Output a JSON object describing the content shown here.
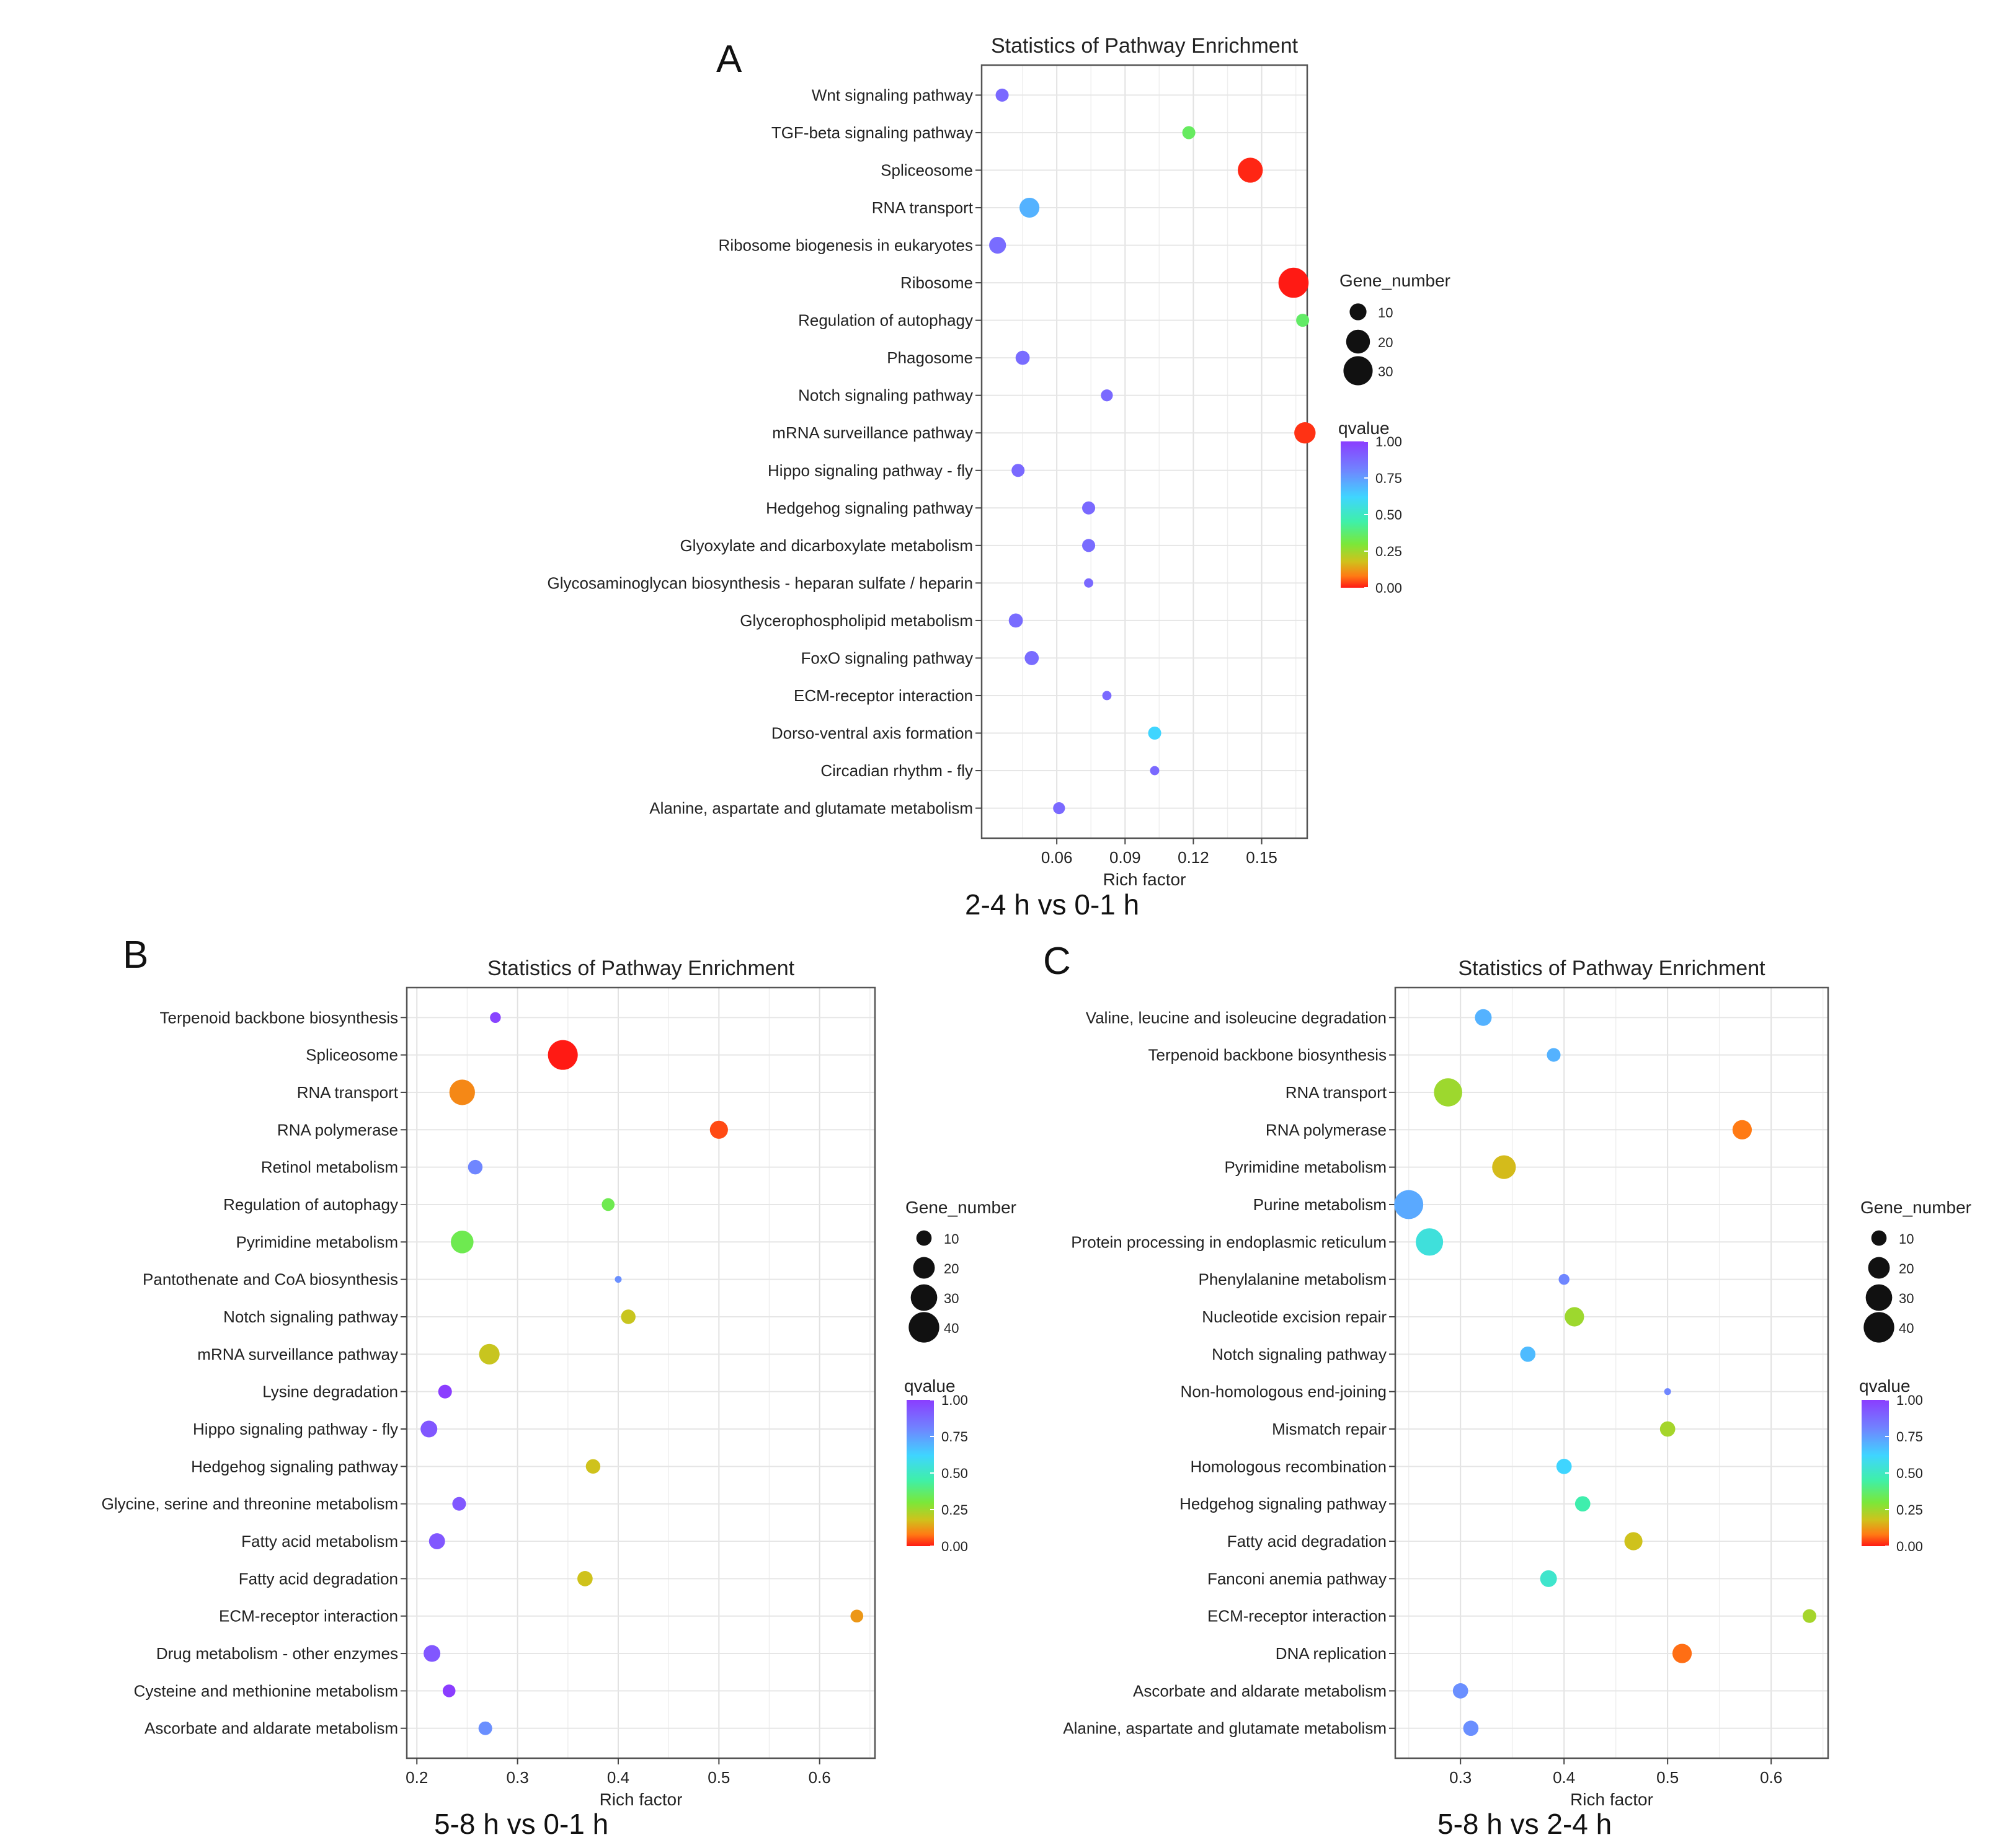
{
  "panels": [
    {
      "letter": "A",
      "subtitle": "2-4 h vs 0-1 h"
    },
    {
      "letter": "B",
      "subtitle": "5-8 h vs 0-1 h"
    },
    {
      "letter": "C",
      "subtitle": "5-8 h vs 2-4 h"
    }
  ],
  "chart_data": [
    {
      "type": "scatter",
      "id": "A",
      "title": "Statistics of Pathway Enrichment",
      "xlabel": "Rich factor",
      "xlim": [
        0.027,
        0.17
      ],
      "xticks": [
        0.06,
        0.09,
        0.12,
        0.15
      ],
      "xtick_labels": [
        "0.06",
        "0.09",
        "0.12",
        "0.15"
      ],
      "size_legend": {
        "title": "Gene_number",
        "values": [
          10,
          20,
          30
        ]
      },
      "color_legend": {
        "title": "qvalue",
        "ticks": [
          "1.00",
          "0.75",
          "0.50",
          "0.25",
          "0.00"
        ]
      },
      "points": [
        {
          "pathway": "Wnt signaling pathway",
          "rich_factor": 0.036,
          "gene_number": 6,
          "qvalue": 0.88
        },
        {
          "pathway": "TGF-beta signaling pathway",
          "rich_factor": 0.118,
          "gene_number": 6,
          "qvalue": 0.35
        },
        {
          "pathway": "Spliceosome",
          "rich_factor": 0.145,
          "gene_number": 22,
          "qvalue": 0.01
        },
        {
          "pathway": "RNA transport",
          "rich_factor": 0.048,
          "gene_number": 14,
          "qvalue": 0.7
        },
        {
          "pathway": "Ribosome biogenesis in eukaryotes",
          "rich_factor": 0.034,
          "gene_number": 10,
          "qvalue": 0.87
        },
        {
          "pathway": "Ribosome",
          "rich_factor": 0.164,
          "gene_number": 32,
          "qvalue": 0.0
        },
        {
          "pathway": "Regulation of autophagy",
          "rich_factor": 0.168,
          "gene_number": 6,
          "qvalue": 0.36
        },
        {
          "pathway": "Phagosome",
          "rich_factor": 0.045,
          "gene_number": 7,
          "qvalue": 0.87
        },
        {
          "pathway": "Notch signaling pathway",
          "rich_factor": 0.082,
          "gene_number": 5,
          "qvalue": 0.88
        },
        {
          "pathway": "mRNA surveillance pathway",
          "rich_factor": 0.169,
          "gene_number": 16,
          "qvalue": 0.02
        },
        {
          "pathway": "Hippo signaling pathway - fly",
          "rich_factor": 0.043,
          "gene_number": 6,
          "qvalue": 0.88
        },
        {
          "pathway": "Hedgehog signaling pathway",
          "rich_factor": 0.074,
          "gene_number": 6,
          "qvalue": 0.88
        },
        {
          "pathway": "Glyoxylate and dicarboxylate metabolism",
          "rich_factor": 0.074,
          "gene_number": 6,
          "qvalue": 0.87
        },
        {
          "pathway": "Glycosaminoglycan biosynthesis - heparan sulfate / heparin",
          "rich_factor": 0.074,
          "gene_number": 3,
          "qvalue": 0.88
        },
        {
          "pathway": "Glycerophospholipid metabolism",
          "rich_factor": 0.042,
          "gene_number": 7,
          "qvalue": 0.87
        },
        {
          "pathway": "FoxO signaling pathway",
          "rich_factor": 0.049,
          "gene_number": 7,
          "qvalue": 0.87
        },
        {
          "pathway": "ECM-receptor interaction",
          "rich_factor": 0.082,
          "gene_number": 3,
          "qvalue": 0.88
        },
        {
          "pathway": "Dorso-ventral axis formation",
          "rich_factor": 0.103,
          "gene_number": 6,
          "qvalue": 0.62
        },
        {
          "pathway": "Circadian rhythm - fly",
          "rich_factor": 0.103,
          "gene_number": 3,
          "qvalue": 0.88
        },
        {
          "pathway": "Alanine, aspartate and glutamate metabolism",
          "rich_factor": 0.061,
          "gene_number": 5,
          "qvalue": 0.88
        }
      ]
    },
    {
      "type": "scatter",
      "id": "B",
      "title": "Statistics of Pathway Enrichment",
      "xlabel": "Rich factor",
      "xlim": [
        0.19,
        0.655
      ],
      "xticks": [
        0.2,
        0.3,
        0.4,
        0.5,
        0.6
      ],
      "xtick_labels": [
        "0.2",
        "0.3",
        "0.4",
        "0.5",
        "0.6"
      ],
      "size_legend": {
        "title": "Gene_number",
        "values": [
          10,
          20,
          30,
          40
        ]
      },
      "color_legend": {
        "title": "qvalue",
        "ticks": [
          "1.00",
          "0.75",
          "0.50",
          "0.25",
          "0.00"
        ]
      },
      "points": [
        {
          "pathway": "Terpenoid backbone biosynthesis",
          "rich_factor": 0.278,
          "gene_number": 5,
          "qvalue": 0.98
        },
        {
          "pathway": "Spliceosome",
          "rich_factor": 0.345,
          "gene_number": 38,
          "qvalue": 0.0
        },
        {
          "pathway": "RNA transport",
          "rich_factor": 0.245,
          "gene_number": 28,
          "qvalue": 0.1
        },
        {
          "pathway": "RNA polymerase",
          "rich_factor": 0.5,
          "gene_number": 14,
          "qvalue": 0.04
        },
        {
          "pathway": "Retinol metabolism",
          "rich_factor": 0.258,
          "gene_number": 9,
          "qvalue": 0.8
        },
        {
          "pathway": "Regulation of autophagy",
          "rich_factor": 0.39,
          "gene_number": 7,
          "qvalue": 0.33
        },
        {
          "pathway": "Pyrimidine metabolism",
          "rich_factor": 0.245,
          "gene_number": 22,
          "qvalue": 0.33
        },
        {
          "pathway": "Pantothenate and CoA biosynthesis",
          "rich_factor": 0.4,
          "gene_number": 2,
          "qvalue": 0.78
        },
        {
          "pathway": "Notch signaling pathway",
          "rich_factor": 0.41,
          "gene_number": 9,
          "qvalue": 0.19
        },
        {
          "pathway": "mRNA surveillance pathway",
          "rich_factor": 0.272,
          "gene_number": 18,
          "qvalue": 0.19
        },
        {
          "pathway": "Lysine degradation",
          "rich_factor": 0.228,
          "gene_number": 8,
          "qvalue": 1.0
        },
        {
          "pathway": "Hippo signaling pathway - fly",
          "rich_factor": 0.212,
          "gene_number": 12,
          "qvalue": 0.93
        },
        {
          "pathway": "Hedgehog signaling pathway",
          "rich_factor": 0.375,
          "gene_number": 9,
          "qvalue": 0.18
        },
        {
          "pathway": "Glycine, serine and threonine metabolism",
          "rich_factor": 0.242,
          "gene_number": 8,
          "qvalue": 0.93
        },
        {
          "pathway": "Fatty acid metabolism",
          "rich_factor": 0.22,
          "gene_number": 11,
          "qvalue": 0.93
        },
        {
          "pathway": "Fatty acid degradation",
          "rich_factor": 0.367,
          "gene_number": 10,
          "qvalue": 0.18
        },
        {
          "pathway": "ECM-receptor interaction",
          "rich_factor": 0.637,
          "gene_number": 7,
          "qvalue": 0.12
        },
        {
          "pathway": "Drug metabolism - other enzymes",
          "rich_factor": 0.215,
          "gene_number": 12,
          "qvalue": 0.93
        },
        {
          "pathway": "Cysteine and methionine metabolism",
          "rich_factor": 0.232,
          "gene_number": 7,
          "qvalue": 1.0
        },
        {
          "pathway": "Ascorbate and aldarate metabolism",
          "rich_factor": 0.268,
          "gene_number": 8,
          "qvalue": 0.78
        }
      ]
    },
    {
      "type": "scatter",
      "id": "C",
      "title": "Statistics of Pathway Enrichment",
      "xlabel": "Rich factor",
      "xlim": [
        0.237,
        0.655
      ],
      "xticks": [
        0.3,
        0.4,
        0.5,
        0.6
      ],
      "xtick_labels": [
        "0.3",
        "0.4",
        "0.5",
        "0.6"
      ],
      "size_legend": {
        "title": "Gene_number",
        "values": [
          10,
          20,
          30,
          40
        ]
      },
      "color_legend": {
        "title": "qvalue",
        "ticks": [
          "1.00",
          "0.75",
          "0.50",
          "0.25",
          "0.00"
        ]
      },
      "points": [
        {
          "pathway": "Valine, leucine and isoleucine degradation",
          "rich_factor": 0.322,
          "gene_number": 12,
          "qvalue": 0.7
        },
        {
          "pathway": "Terpenoid backbone biosynthesis",
          "rich_factor": 0.39,
          "gene_number": 8,
          "qvalue": 0.7
        },
        {
          "pathway": "RNA transport",
          "rich_factor": 0.288,
          "gene_number": 34,
          "qvalue": 0.25
        },
        {
          "pathway": "RNA polymerase",
          "rich_factor": 0.572,
          "gene_number": 16,
          "qvalue": 0.08
        },
        {
          "pathway": "Pyrimidine metabolism",
          "rich_factor": 0.342,
          "gene_number": 24,
          "qvalue": 0.17
        },
        {
          "pathway": "Purine metabolism",
          "rich_factor": 0.25,
          "gene_number": 36,
          "qvalue": 0.72
        },
        {
          "pathway": "Protein processing in endoplasmic reticulum",
          "rich_factor": 0.27,
          "gene_number": 32,
          "qvalue": 0.55
        },
        {
          "pathway": "Phenylalanine metabolism",
          "rich_factor": 0.4,
          "gene_number": 5,
          "qvalue": 0.8
        },
        {
          "pathway": "Nucleotide excision repair",
          "rich_factor": 0.41,
          "gene_number": 16,
          "qvalue": 0.25
        },
        {
          "pathway": "Notch signaling pathway",
          "rich_factor": 0.365,
          "gene_number": 10,
          "qvalue": 0.68
        },
        {
          "pathway": "Non-homologous end-joining",
          "rich_factor": 0.5,
          "gene_number": 2,
          "qvalue": 0.8
        },
        {
          "pathway": "Mismatch repair",
          "rich_factor": 0.5,
          "gene_number": 10,
          "qvalue": 0.24
        },
        {
          "pathway": "Homologous recombination",
          "rich_factor": 0.4,
          "gene_number": 10,
          "qvalue": 0.62
        },
        {
          "pathway": "Hedgehog signaling pathway",
          "rich_factor": 0.418,
          "gene_number": 10,
          "qvalue": 0.46
        },
        {
          "pathway": "Fatty acid degradation",
          "rich_factor": 0.467,
          "gene_number": 14,
          "qvalue": 0.18
        },
        {
          "pathway": "Fanconi anemia pathway",
          "rich_factor": 0.385,
          "gene_number": 12,
          "qvalue": 0.52
        },
        {
          "pathway": "ECM-receptor interaction",
          "rich_factor": 0.637,
          "gene_number": 8,
          "qvalue": 0.24
        },
        {
          "pathway": "DNA replication",
          "rich_factor": 0.514,
          "gene_number": 16,
          "qvalue": 0.07
        },
        {
          "pathway": "Ascorbate and aldarate metabolism",
          "rich_factor": 0.3,
          "gene_number": 10,
          "qvalue": 0.78
        },
        {
          "pathway": "Alanine, aspartate and glutamate metabolism",
          "rich_factor": 0.31,
          "gene_number": 10,
          "qvalue": 0.78
        }
      ]
    }
  ]
}
